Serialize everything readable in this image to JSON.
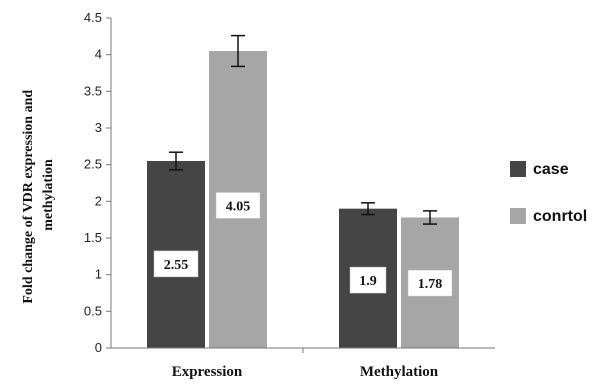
{
  "chart_data": {
    "type": "bar",
    "categories": [
      "Expression",
      "Methylation"
    ],
    "series": [
      {
        "name": "case",
        "values": [
          2.55,
          1.9
        ],
        "errors": [
          0.12,
          0.08
        ],
        "labels": [
          "2.55",
          "1.9"
        ],
        "color": "#454545"
      },
      {
        "name": "conrtol",
        "values": [
          4.05,
          1.78
        ],
        "errors": [
          0.21,
          0.09
        ],
        "labels": [
          "4.05",
          "1.78"
        ],
        "color": "#a6a6a6"
      }
    ],
    "ylabel_lines": [
      "Fold change of VDR expression and",
      "methylation"
    ],
    "ylim": [
      0,
      4.5
    ],
    "yticks": [
      "0",
      "0.5",
      "1",
      "1.5",
      "2",
      "2.5",
      "3",
      "3.5",
      "4",
      "4.5"
    ],
    "legend_position": "right",
    "grid": false
  }
}
